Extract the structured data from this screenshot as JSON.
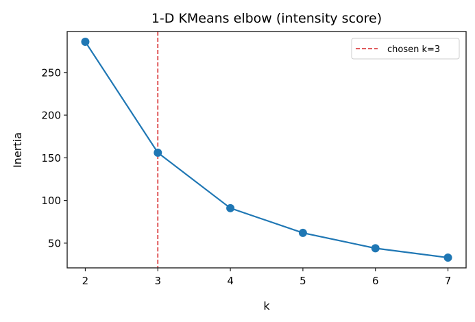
{
  "chart_data": {
    "type": "line",
    "title": "1-D KMeans elbow (intensity score)",
    "xlabel": "k",
    "ylabel": "Inertia",
    "x": [
      2,
      3,
      4,
      5,
      6,
      7
    ],
    "series": [
      {
        "name": "inertia",
        "values": [
          286,
          156,
          91,
          62,
          44,
          33
        ],
        "color": "#1f77b4",
        "marker": "circle"
      }
    ],
    "xticks": [
      2,
      3,
      4,
      5,
      6,
      7
    ],
    "yticks": [
      50,
      100,
      150,
      200,
      250
    ],
    "xlim": [
      1.75,
      7.25
    ],
    "ylim": [
      21,
      298
    ],
    "grid": false,
    "annotations": [
      {
        "type": "vline",
        "x": 3,
        "style": "dashed",
        "color": "#d62728",
        "label": "chosen k=3"
      }
    ],
    "legend": {
      "position": "upper right",
      "entries": [
        "chosen k=3"
      ]
    }
  }
}
